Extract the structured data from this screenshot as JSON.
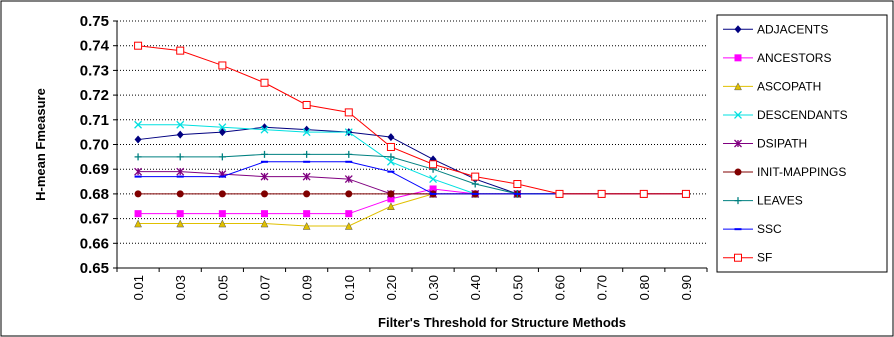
{
  "chart_data": {
    "type": "line",
    "title": "",
    "xlabel": "Filter's Threshold for Structure Methods",
    "ylabel": "H-mean Fmeasure",
    "categories": [
      "0.01",
      "0.03",
      "0.05",
      "0.07",
      "0.09",
      "0.10",
      "0.20",
      "0.30",
      "0.40",
      "0.50",
      "0.60",
      "0.70",
      "0.80",
      "0.90"
    ],
    "ylim": [
      0.65,
      0.75
    ],
    "yticks": [
      "0.65",
      "0.66",
      "0.67",
      "0.68",
      "0.69",
      "0.70",
      "0.71",
      "0.72",
      "0.73",
      "0.74",
      "0.75"
    ],
    "grid": "horizontal dashed",
    "legend_position": "right",
    "series": [
      {
        "name": "ADJACENTS",
        "color": "#000080",
        "marker": "diamond",
        "values": [
          0.702,
          0.704,
          0.705,
          0.707,
          0.706,
          0.705,
          0.703,
          0.694,
          0.686,
          0.68,
          0.68,
          0.68,
          0.68,
          0.68
        ]
      },
      {
        "name": "ANCESTORS",
        "color": "#ff00ff",
        "marker": "square",
        "values": [
          0.672,
          0.672,
          0.672,
          0.672,
          0.672,
          0.672,
          0.678,
          0.682,
          0.68,
          0.68,
          0.68,
          0.68,
          0.68,
          0.68
        ]
      },
      {
        "name": "ASCOPATH",
        "color": "#e0c000",
        "marker": "triangle",
        "values": [
          0.668,
          0.668,
          0.668,
          0.668,
          0.667,
          0.667,
          0.675,
          0.68,
          0.68,
          0.68,
          0.68,
          0.68,
          0.68,
          0.68
        ]
      },
      {
        "name": "DESCENDANTS",
        "color": "#00e0e0",
        "marker": "x",
        "values": [
          0.708,
          0.708,
          0.707,
          0.706,
          0.705,
          0.705,
          0.693,
          0.686,
          0.68,
          0.68,
          0.68,
          0.68,
          0.68,
          0.68
        ]
      },
      {
        "name": "DSIPATH",
        "color": "#800080",
        "marker": "star",
        "values": [
          0.689,
          0.689,
          0.688,
          0.687,
          0.687,
          0.686,
          0.68,
          0.68,
          0.68,
          0.68,
          0.68,
          0.68,
          0.68,
          0.68
        ]
      },
      {
        "name": "INIT-MAPPINGS",
        "color": "#800000",
        "marker": "circle",
        "values": [
          0.68,
          0.68,
          0.68,
          0.68,
          0.68,
          0.68,
          0.68,
          0.68,
          0.68,
          0.68,
          0.68,
          0.68,
          0.68,
          0.68
        ]
      },
      {
        "name": "LEAVES",
        "color": "#008080",
        "marker": "plus",
        "values": [
          0.695,
          0.695,
          0.695,
          0.696,
          0.696,
          0.696,
          0.695,
          0.69,
          0.684,
          0.68,
          0.68,
          0.68,
          0.68,
          0.68
        ]
      },
      {
        "name": "SSC",
        "color": "#0000ff",
        "marker": "dash",
        "values": [
          0.687,
          0.687,
          0.687,
          0.693,
          0.693,
          0.693,
          0.689,
          0.68,
          0.68,
          0.68,
          0.68,
          0.68,
          0.68,
          0.68
        ]
      },
      {
        "name": "SF",
        "color": "#ff0000",
        "marker": "open-square",
        "values": [
          0.74,
          0.738,
          0.732,
          0.725,
          0.716,
          0.713,
          0.699,
          0.692,
          0.687,
          0.684,
          0.68,
          0.68,
          0.68,
          0.68
        ]
      }
    ]
  }
}
